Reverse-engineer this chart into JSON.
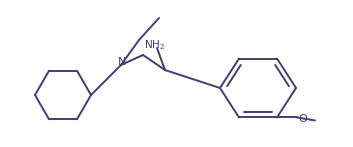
{
  "bg_color": "#ffffff",
  "line_color": "#404070",
  "line_width": 1.4,
  "fig_width": 3.53,
  "fig_height": 1.47,
  "dpi": 100
}
